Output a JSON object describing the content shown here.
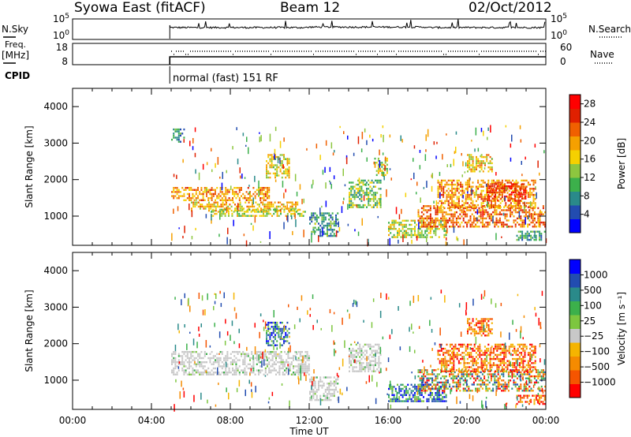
{
  "header": {
    "title": "Syowa East (fitACF)",
    "beam": "Beam 12",
    "date": "02/Oct/2012"
  },
  "status_panels": {
    "noise": {
      "left_label": "N.Sky",
      "left_ticks": [
        "10^5",
        "10^0"
      ],
      "right_ticks": [
        "10^5",
        "10^0"
      ],
      "right_label": "N.Search",
      "right_line": "dotted"
    },
    "freq": {
      "left_label_1": "Freq.",
      "left_label_2": "[MHz]",
      "left_ticks": [
        "18",
        "8"
      ],
      "right_ticks": [
        "60",
        "0"
      ],
      "right_label": "Nave",
      "right_line": "dotted"
    },
    "cpid": {
      "label": "CPID",
      "text": "normal (fast) 151 RF"
    }
  },
  "chart_data": [
    {
      "type": "heatmap",
      "title": "Power",
      "ylabel": "Slant Range [km]",
      "xlabel": "",
      "ylim": [
        200,
        4500
      ],
      "xlim_hours": [
        0,
        24
      ],
      "yticks": [
        "1000",
        "2000",
        "3000",
        "4000"
      ],
      "data_start_utc": "04:56",
      "colorbar": {
        "label": "Power [dB]",
        "ticks": [
          "4",
          "8",
          "12",
          "16",
          "20",
          "24",
          "28"
        ],
        "range": [
          0,
          30
        ],
        "colors": [
          "#0000ff",
          "#224cb0",
          "#2a8a8a",
          "#3cb04b",
          "#8dc63f",
          "#f5d000",
          "#f5a000",
          "#f06000",
          "#e02000",
          "#ff0000"
        ]
      },
      "echo_regions": [
        {
          "t0": 5.0,
          "t1": 10.0,
          "r0": 1400,
          "r1": 1800,
          "p": 20
        },
        {
          "t0": 6.0,
          "t1": 11.5,
          "r0": 1100,
          "r1": 1400,
          "p": 18
        },
        {
          "t0": 7.0,
          "t1": 11.8,
          "r0": 1000,
          "r1": 1200,
          "p": 14
        },
        {
          "t0": 9.8,
          "t1": 11.0,
          "r0": 2000,
          "r1": 2700,
          "p": 16
        },
        {
          "t0": 5.0,
          "t1": 5.7,
          "r0": 3000,
          "r1": 3400,
          "p": 8
        },
        {
          "t0": 12.0,
          "t1": 13.5,
          "r0": 400,
          "r1": 1100,
          "p": 8
        },
        {
          "t0": 14.0,
          "t1": 15.7,
          "r0": 1200,
          "r1": 2000,
          "p": 12
        },
        {
          "t0": 15.3,
          "t1": 16.0,
          "r0": 2100,
          "r1": 2600,
          "p": 14
        },
        {
          "t0": 16.0,
          "t1": 19.0,
          "r0": 400,
          "r1": 900,
          "p": 14
        },
        {
          "t0": 17.5,
          "t1": 24.0,
          "r0": 700,
          "r1": 1300,
          "p": 22
        },
        {
          "t0": 18.5,
          "t1": 23.5,
          "r0": 1200,
          "r1": 2000,
          "p": 20
        },
        {
          "t0": 20.0,
          "t1": 21.3,
          "r0": 2200,
          "r1": 2700,
          "p": 18
        },
        {
          "t0": 21.0,
          "t1": 23.0,
          "r0": 1400,
          "r1": 1900,
          "p": 26
        },
        {
          "t0": 22.5,
          "t1": 24.0,
          "r0": 300,
          "r1": 600,
          "p": 10
        }
      ]
    },
    {
      "type": "heatmap",
      "title": "Velocity",
      "ylabel": "Slant Range [km]",
      "xlabel": "Time UT",
      "ylim": [
        200,
        4500
      ],
      "xlim_hours": [
        0,
        24
      ],
      "xticks": [
        "00:00",
        "04:00",
        "08:00",
        "12:00",
        "16:00",
        "20:00",
        "00:00"
      ],
      "yticks": [
        "1000",
        "2000",
        "3000",
        "4000"
      ],
      "colorbar": {
        "label": "Velocity [m s⁻¹]",
        "ticks": [
          "1000",
          "500",
          "100",
          "25",
          "−25",
          "−100",
          "−500",
          "−1000"
        ],
        "range": [
          -1250,
          1250
        ],
        "colors": [
          "#ff0000",
          "#f55500",
          "#f58b00",
          "#f5b400",
          "#c8c8c8",
          "#7dc63f",
          "#3cb04b",
          "#2a8a8a",
          "#224cb0",
          "#0000ff"
        ]
      },
      "echo_regions": [
        {
          "t0": 5.0,
          "t1": 12.0,
          "r0": 1100,
          "r1": 1800,
          "v": "ground"
        },
        {
          "t0": 9.8,
          "t1": 11.0,
          "r0": 1900,
          "r1": 2600,
          "v": "positive"
        },
        {
          "t0": 12.0,
          "t1": 13.5,
          "r0": 400,
          "r1": 1100,
          "v": "ground"
        },
        {
          "t0": 14.0,
          "t1": 15.7,
          "r0": 1200,
          "r1": 2000,
          "v": "ground"
        },
        {
          "t0": 16.0,
          "t1": 19.0,
          "r0": 400,
          "r1": 900,
          "v": "positive"
        },
        {
          "t0": 17.5,
          "t1": 24.0,
          "r0": 700,
          "r1": 1300,
          "v": "mixed"
        },
        {
          "t0": 18.5,
          "t1": 23.5,
          "r0": 1200,
          "r1": 2000,
          "v": "negative"
        },
        {
          "t0": 20.0,
          "t1": 21.3,
          "r0": 2200,
          "r1": 2700,
          "v": "negative"
        },
        {
          "t0": 22.5,
          "t1": 24.0,
          "r0": 300,
          "r1": 600,
          "v": "negative"
        }
      ]
    }
  ]
}
